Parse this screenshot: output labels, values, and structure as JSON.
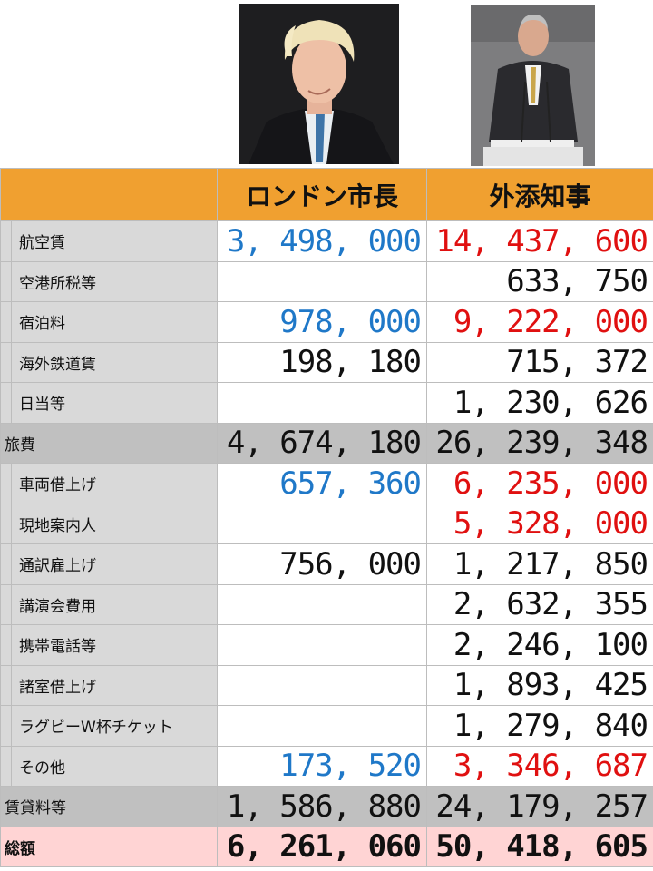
{
  "colors": {
    "header": "#f0a030",
    "label_bg": "#d9d9d9",
    "subtotal_bg": "#c0c0c0",
    "total_bg": "#ffd4d4",
    "blue": "#1f78c8",
    "red": "#e01010"
  },
  "photos": {
    "left": "portrait-london-mayor",
    "right": "portrait-tokyo-governor-at-podium"
  },
  "table": {
    "headers": [
      "ロンドン市長",
      "外添知事"
    ],
    "rows": [
      {
        "kind": "item",
        "label": "航空賃",
        "v1": "3, 498, 000",
        "v1_color": "blue",
        "v2": "14, 437, 600",
        "v2_color": "red"
      },
      {
        "kind": "item",
        "label": "空港所税等",
        "v1": "",
        "v2": "633, 750"
      },
      {
        "kind": "item",
        "label": "宿泊料",
        "v1": "978, 000",
        "v1_color": "blue",
        "v2": "9, 222, 000",
        "v2_color": "red"
      },
      {
        "kind": "item",
        "label": "海外鉄道賃",
        "v1": "198, 180",
        "v2": "715, 372"
      },
      {
        "kind": "item",
        "label": "日当等",
        "v1": "",
        "v2": "1, 230, 626"
      },
      {
        "kind": "subtotal",
        "label": "旅費",
        "v1": "4, 674, 180",
        "v2": "26, 239, 348"
      },
      {
        "kind": "item",
        "label": "車両借上げ",
        "v1": "657, 360",
        "v1_color": "blue",
        "v2": "6, 235, 000",
        "v2_color": "red"
      },
      {
        "kind": "item",
        "label": "現地案内人",
        "v1": "",
        "v2": "5, 328, 000",
        "v2_color": "red"
      },
      {
        "kind": "item",
        "label": "通訳雇上げ",
        "v1": "756, 000",
        "v2": "1, 217, 850"
      },
      {
        "kind": "item",
        "label": "講演会費用",
        "v1": "",
        "v2": "2, 632, 355"
      },
      {
        "kind": "item",
        "label": "携帯電話等",
        "v1": "",
        "v2": "2, 246, 100"
      },
      {
        "kind": "item",
        "label": "諸室借上げ",
        "v1": "",
        "v2": "1, 893, 425"
      },
      {
        "kind": "item",
        "label": "ラグビーW杯チケット",
        "v1": "",
        "v2": "1, 279, 840"
      },
      {
        "kind": "item",
        "label": "その他",
        "v1": "173, 520",
        "v1_color": "blue",
        "v2": "3, 346, 687",
        "v2_color": "red"
      },
      {
        "kind": "subtotal",
        "label": "賃貸料等",
        "v1": "1, 586, 880",
        "v2": "24, 179, 257"
      },
      {
        "kind": "total",
        "label": "総額",
        "v1": "6, 261, 060",
        "v2": "50, 418, 605"
      }
    ]
  }
}
